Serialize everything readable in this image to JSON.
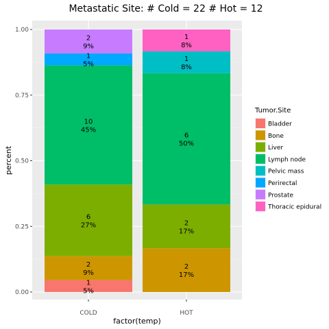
{
  "chart_data": {
    "type": "bar",
    "stacked": true,
    "normalized": true,
    "title": "Metastatic Site: # Cold = 22 # Hot = 12",
    "xlabel": "factor(temp)",
    "ylabel": "percent",
    "ylim": [
      0,
      1
    ],
    "yticks": [
      "0.00",
      "0.25",
      "0.50",
      "0.75",
      "1.00"
    ],
    "yticks_values": [
      0,
      0.25,
      0.5,
      0.75,
      1
    ],
    "categories": [
      "COLD",
      "HOT"
    ],
    "grid": true,
    "legend_position": "right",
    "legend_title": "Tumor.Site",
    "series": [
      {
        "name": "Bladder",
        "color": "#F8766D",
        "counts": [
          1,
          0
        ],
        "percent_labels": [
          "5%",
          ""
        ]
      },
      {
        "name": "Bone",
        "color": "#CD9600",
        "counts": [
          2,
          2
        ],
        "percent_labels": [
          "9%",
          "17%"
        ]
      },
      {
        "name": "Liver",
        "color": "#7CAE00",
        "counts": [
          6,
          2
        ],
        "percent_labels": [
          "27%",
          "17%"
        ]
      },
      {
        "name": "Lymph node",
        "color": "#00BE67",
        "counts": [
          10,
          6
        ],
        "percent_labels": [
          "45%",
          "50%"
        ]
      },
      {
        "name": "Pelvic mass",
        "color": "#00BFC4",
        "counts": [
          0,
          1
        ],
        "percent_labels": [
          "",
          "8%"
        ]
      },
      {
        "name": "Perirectal",
        "color": "#00A9FF",
        "counts": [
          1,
          0
        ],
        "percent_labels": [
          "5%",
          ""
        ]
      },
      {
        "name": "Prostate",
        "color": "#C77CFF",
        "counts": [
          2,
          0
        ],
        "percent_labels": [
          "9%",
          ""
        ]
      },
      {
        "name": "Thoracic epidural",
        "color": "#FF61C3",
        "counts": [
          0,
          1
        ],
        "percent_labels": [
          "",
          "8%"
        ]
      }
    ]
  }
}
